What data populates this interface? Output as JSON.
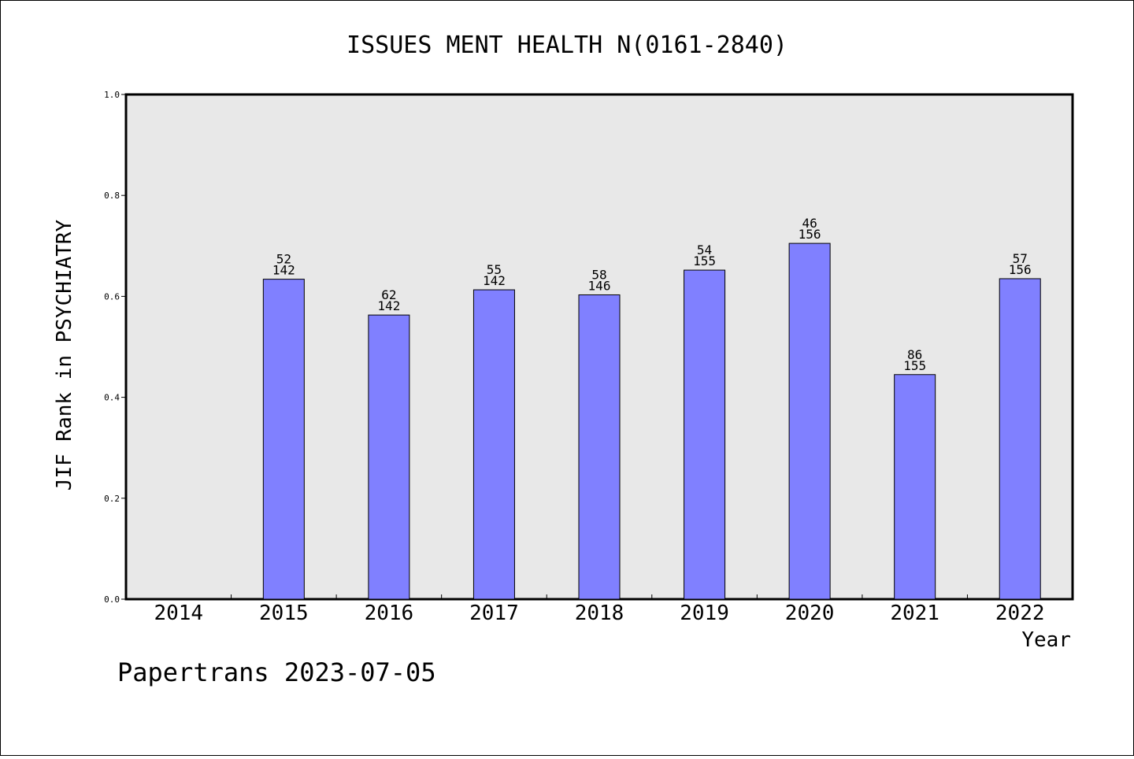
{
  "chart_data": {
    "type": "bar",
    "title": "ISSUES MENT HEALTH N(0161-2840)",
    "xlabel": "Year",
    "ylabel": "JIF Rank in PSYCHIATRY",
    "ylim": [
      0,
      1.0
    ],
    "yticks": [
      "0.0",
      "0.2",
      "0.4",
      "0.6",
      "0.8",
      "1.0"
    ],
    "grid": false,
    "categories": [
      "2014",
      "2015",
      "2016",
      "2017",
      "2018",
      "2019",
      "2020",
      "2021",
      "2022"
    ],
    "values": [
      null,
      0.634,
      0.563,
      0.613,
      0.603,
      0.652,
      0.705,
      0.445,
      0.635
    ],
    "labels": [
      null,
      [
        "52",
        "142"
      ],
      [
        "62",
        "142"
      ],
      [
        "55",
        "142"
      ],
      [
        "58",
        "146"
      ],
      [
        "54",
        "155"
      ],
      [
        "46",
        "156"
      ],
      [
        "86",
        "155"
      ],
      [
        "57",
        "156"
      ]
    ],
    "colors": {
      "bar": "#8080ff",
      "plot_bg": "#e8e8e8",
      "axis": "#000000"
    }
  },
  "footer": "Papertrans 2023-07-05"
}
